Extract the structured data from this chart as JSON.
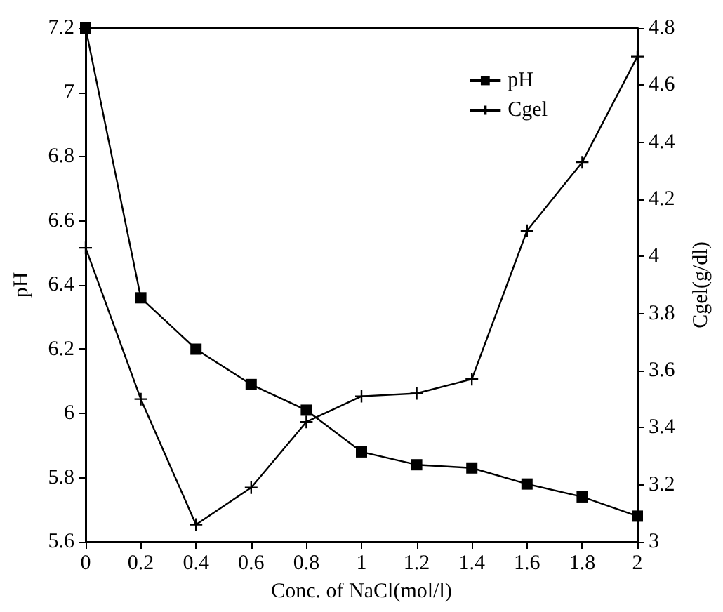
{
  "chart_data": {
    "type": "line",
    "xlabel": "Conc. of NaCl(mol/l)",
    "ylabel": "pH",
    "y2label": "Cgel(g/dl)",
    "x": [
      0,
      0.2,
      0.4,
      0.6,
      0.8,
      1.0,
      1.2,
      1.4,
      1.6,
      1.8,
      2.0
    ],
    "series": [
      {
        "name": "pH",
        "color": "#000000",
        "marker": "square",
        "values": [
          7.2,
          6.36,
          6.2,
          6.09,
          6.01,
          5.88,
          5.84,
          5.83,
          5.78,
          5.74,
          5.68
        ]
      },
      {
        "name": "Cgel",
        "color": "#000000",
        "marker": "cross",
        "axis": "y2",
        "values": [
          4.03,
          3.5,
          3.06,
          3.19,
          3.42,
          3.51,
          3.52,
          3.57,
          4.09,
          4.33,
          4.7
        ]
      }
    ],
    "xlim": [
      0,
      2
    ],
    "xticks": [
      0,
      0.2,
      0.4,
      0.6,
      0.8,
      1,
      1.2,
      1.4,
      1.6,
      1.8,
      2
    ],
    "ylim": [
      5.6,
      7.2
    ],
    "yticks": [
      5.6,
      5.8,
      6,
      6.2,
      6.4,
      6.6,
      6.8,
      7,
      7.2
    ],
    "y2lim": [
      3,
      4.8
    ],
    "y2ticks": [
      3,
      3.2,
      3.4,
      3.6,
      3.8,
      4,
      4.2,
      4.4,
      4.6,
      4.8
    ],
    "grid": false,
    "legend": "top right",
    "line_style": "solid"
  }
}
